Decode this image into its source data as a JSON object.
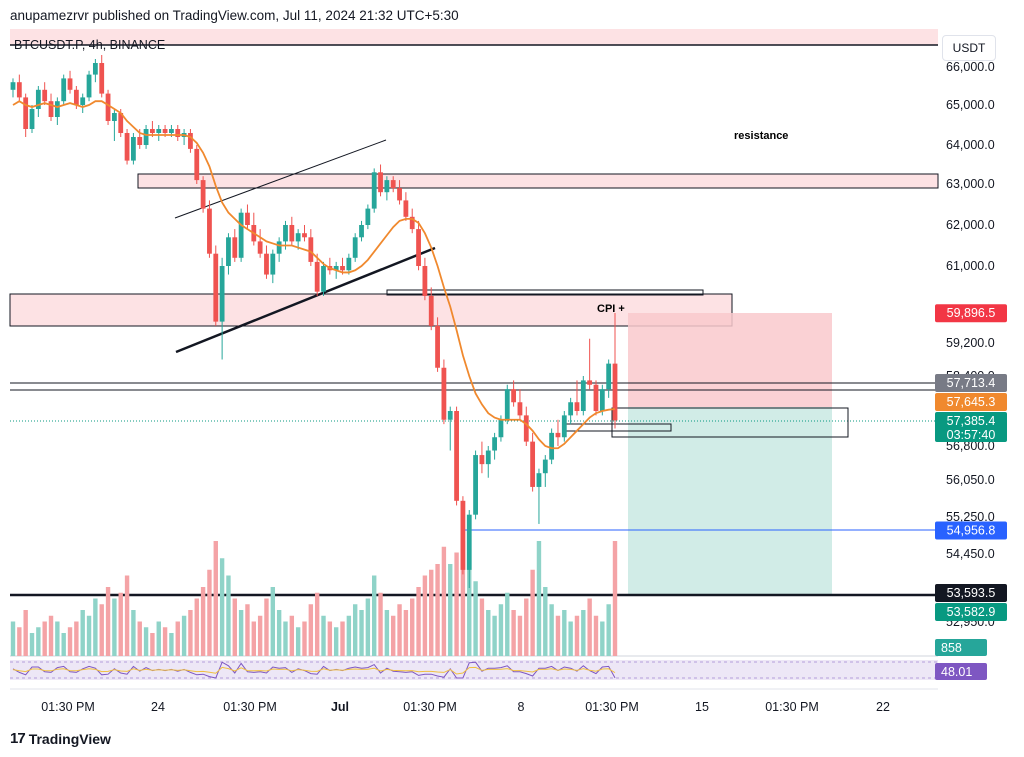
{
  "header": {
    "published": "anupamezrvr published on TradingView.com, Jul 11, 2024 21:32 UTC+5:30"
  },
  "symbol": {
    "label": "BTCUSDT.P, 4h, BINANCE"
  },
  "currency": "USDT",
  "footer": {
    "brand": "TradingView"
  },
  "annotations": {
    "resistance": "resistance",
    "cpi": "CPI +"
  },
  "colors": {
    "up": "#26a69a",
    "down": "#ef5350",
    "ma": "#f0892e",
    "zone_fill": "#fde2e4",
    "zone_stroke": "#333333",
    "stop_zone": "#f9c9cc",
    "target_zone": "#c9e9e3"
  },
  "chart_data": {
    "type": "candlestick",
    "y_axis": {
      "ticks": [
        "66,000.0",
        "65,000.0",
        "64,000.0",
        "63,000.0",
        "62,000.0",
        "61,000.0",
        "59,200.0",
        "58,400.0",
        "56,800.0",
        "56,050.0",
        "55,250.0",
        "54,450.0",
        "52,950.0"
      ],
      "tick_values": [
        66000,
        65000,
        64000,
        63000,
        62000,
        61000,
        59200,
        58400,
        56800,
        56050,
        55250,
        54450,
        52950
      ]
    },
    "x_axis": {
      "ticks": [
        "01:30 PM",
        "24",
        "01:30 PM",
        "Jul",
        "01:30 PM",
        "8",
        "01:30 PM",
        "15",
        "01:30 PM",
        "22"
      ]
    },
    "price_tags": [
      {
        "label": "59,896.5",
        "value": 59896.5,
        "color": "#f23645"
      },
      {
        "label": "57,713.4",
        "value": 57713.4,
        "color": "#787b86"
      },
      {
        "label": "57,645.3",
        "value": 57645.3,
        "color": "#f0892e"
      },
      {
        "label": "57,385.4",
        "value": 57385.4,
        "color": "#089981",
        "sub": "03:57:40"
      },
      {
        "label": "54,956.8",
        "value": 54956.8,
        "color": "#2962ff"
      },
      {
        "label": "53,593.5",
        "value": 53593.5,
        "color": "#131722"
      },
      {
        "label": "53,582.9",
        "value": 53582.9,
        "color": "#089981"
      }
    ],
    "indicator_tags": [
      {
        "label": "858",
        "color": "#26a69a"
      },
      {
        "label": "48.01",
        "color": "#7e57c2"
      }
    ],
    "candles_ohlc": [
      [
        65400,
        65700,
        65200,
        65600
      ],
      [
        65600,
        65800,
        65100,
        65200
      ],
      [
        65200,
        65300,
        64200,
        64400
      ],
      [
        64400,
        65000,
        64300,
        64900
      ],
      [
        64900,
        65500,
        64700,
        65400
      ],
      [
        65400,
        65600,
        65000,
        65100
      ],
      [
        65100,
        65300,
        64600,
        64700
      ],
      [
        64700,
        65200,
        64500,
        65100
      ],
      [
        65100,
        65800,
        65000,
        65700
      ],
      [
        65700,
        65900,
        65300,
        65400
      ],
      [
        65400,
        65500,
        64900,
        65000
      ],
      [
        65000,
        65300,
        64800,
        65200
      ],
      [
        65200,
        65900,
        65100,
        65800
      ],
      [
        65800,
        66200,
        65600,
        66100
      ],
      [
        66100,
        66300,
        65200,
        65300
      ],
      [
        65300,
        65400,
        64500,
        64600
      ],
      [
        64600,
        64900,
        64100,
        64800
      ],
      [
        64800,
        64900,
        64200,
        64300
      ],
      [
        64300,
        64400,
        63500,
        63600
      ],
      [
        63600,
        64300,
        63500,
        64200
      ],
      [
        64200,
        64400,
        63900,
        64000
      ],
      [
        64000,
        64500,
        63900,
        64400
      ],
      [
        64400,
        64600,
        64200,
        64300
      ],
      [
        64300,
        64500,
        64100,
        64400
      ],
      [
        64400,
        64500,
        64200,
        64300
      ],
      [
        64300,
        64500,
        64200,
        64400
      ],
      [
        64400,
        64500,
        64100,
        64200
      ],
      [
        64200,
        64400,
        64000,
        64300
      ],
      [
        64300,
        64400,
        63800,
        63900
      ],
      [
        63900,
        64000,
        63000,
        63100
      ],
      [
        63100,
        63200,
        62300,
        62400
      ],
      [
        62400,
        62600,
        61200,
        61300
      ],
      [
        61300,
        61500,
        59600,
        59700
      ],
      [
        59700,
        61200,
        58800,
        61000
      ],
      [
        61000,
        61800,
        60800,
        61700
      ],
      [
        61700,
        61900,
        61100,
        61200
      ],
      [
        61200,
        62400,
        61100,
        62300
      ],
      [
        62300,
        62500,
        61900,
        62000
      ],
      [
        62000,
        62300,
        61500,
        61600
      ],
      [
        61600,
        61900,
        61200,
        61300
      ],
      [
        61300,
        61500,
        60700,
        60800
      ],
      [
        60800,
        61400,
        60600,
        61300
      ],
      [
        61300,
        61700,
        61100,
        61600
      ],
      [
        61600,
        62100,
        61400,
        62000
      ],
      [
        62000,
        62200,
        61500,
        61600
      ],
      [
        61600,
        61900,
        61400,
        61800
      ],
      [
        61800,
        62000,
        61600,
        61700
      ],
      [
        61700,
        61900,
        61000,
        61100
      ],
      [
        61100,
        61300,
        60300,
        60400
      ],
      [
        60400,
        61100,
        60300,
        61000
      ],
      [
        61000,
        61200,
        60800,
        60900
      ],
      [
        60900,
        61100,
        60700,
        61000
      ],
      [
        61000,
        61200,
        60800,
        60900
      ],
      [
        60900,
        61300,
        60800,
        61200
      ],
      [
        61200,
        61800,
        61100,
        61700
      ],
      [
        61700,
        62100,
        61600,
        62000
      ],
      [
        62000,
        62500,
        61900,
        62400
      ],
      [
        62400,
        63400,
        62300,
        63300
      ],
      [
        63300,
        63500,
        62700,
        62800
      ],
      [
        62800,
        63200,
        62600,
        63100
      ],
      [
        63100,
        63200,
        62800,
        62900
      ],
      [
        62900,
        63100,
        62500,
        62600
      ],
      [
        62600,
        62800,
        62100,
        62200
      ],
      [
        62200,
        62400,
        61800,
        61900
      ],
      [
        61900,
        62100,
        60900,
        61000
      ],
      [
        61000,
        61200,
        60200,
        60300
      ],
      [
        60300,
        60500,
        59500,
        59600
      ],
      [
        59600,
        59800,
        58500,
        58600
      ],
      [
        58600,
        58800,
        57300,
        57400
      ],
      [
        57400,
        57700,
        56700,
        57600
      ],
      [
        57600,
        57700,
        55500,
        55600
      ],
      [
        55600,
        55700,
        54000,
        54100
      ],
      [
        54100,
        55400,
        53700,
        55300
      ],
      [
        55300,
        56700,
        55200,
        56600
      ],
      [
        56600,
        56900,
        56200,
        56400
      ],
      [
        56400,
        56800,
        56100,
        56700
      ],
      [
        56700,
        57100,
        56500,
        57000
      ],
      [
        57000,
        57500,
        56900,
        57400
      ],
      [
        57400,
        58200,
        57300,
        58100
      ],
      [
        58100,
        58300,
        57700,
        57800
      ],
      [
        57800,
        58100,
        57400,
        57500
      ],
      [
        57500,
        57700,
        56800,
        56900
      ],
      [
        56900,
        57100,
        55800,
        55900
      ],
      [
        55900,
        56300,
        55100,
        56200
      ],
      [
        56200,
        56600,
        55900,
        56500
      ],
      [
        56500,
        57200,
        56400,
        57100
      ],
      [
        57100,
        57400,
        56800,
        57000
      ],
      [
        57000,
        57600,
        56900,
        57500
      ],
      [
        57500,
        57900,
        57300,
        57800
      ],
      [
        57800,
        58300,
        57500,
        57600
      ],
      [
        57600,
        58400,
        57500,
        58300
      ],
      [
        58300,
        59300,
        58100,
        58200
      ],
      [
        58200,
        58300,
        57500,
        57600
      ],
      [
        57600,
        58200,
        57500,
        58100
      ],
      [
        58100,
        58800,
        57900,
        58700
      ],
      [
        58700,
        59900,
        57200,
        57385
      ]
    ],
    "volume_rel": [
      0.3,
      0.25,
      0.4,
      0.2,
      0.25,
      0.3,
      0.35,
      0.3,
      0.2,
      0.25,
      0.3,
      0.4,
      0.35,
      0.5,
      0.45,
      0.6,
      0.5,
      0.55,
      0.7,
      0.4,
      0.3,
      0.25,
      0.2,
      0.3,
      0.25,
      0.2,
      0.3,
      0.35,
      0.4,
      0.5,
      0.6,
      0.75,
      1.0,
      0.85,
      0.7,
      0.5,
      0.4,
      0.45,
      0.3,
      0.35,
      0.5,
      0.6,
      0.4,
      0.3,
      0.35,
      0.25,
      0.3,
      0.45,
      0.55,
      0.35,
      0.3,
      0.25,
      0.3,
      0.35,
      0.45,
      0.4,
      0.5,
      0.7,
      0.55,
      0.4,
      0.35,
      0.45,
      0.4,
      0.5,
      0.6,
      0.7,
      0.75,
      0.8,
      0.95,
      0.8,
      0.9,
      1.0,
      0.85,
      0.65,
      0.5,
      0.4,
      0.35,
      0.45,
      0.55,
      0.4,
      0.35,
      0.5,
      0.75,
      1.0,
      0.6,
      0.45,
      0.35,
      0.4,
      0.3,
      0.35,
      0.4,
      0.5,
      0.35,
      0.3,
      0.45,
      1.0
    ],
    "ma_curve": [
      65000,
      65100,
      65000,
      64950,
      65000,
      65050,
      65000,
      64950,
      65000,
      65050,
      65000,
      64950,
      65000,
      65100,
      65100,
      65000,
      64900,
      64800,
      64600,
      64450,
      64300,
      64250,
      64250,
      64250,
      64250,
      64250,
      64250,
      64250,
      64200,
      64050,
      63800,
      63450,
      62950,
      62550,
      62300,
      62150,
      62000,
      61900,
      61800,
      61700,
      61600,
      61550,
      61500,
      61500,
      61500,
      61450,
      61400,
      61350,
      61200,
      61050,
      60950,
      60900,
      60850,
      60850,
      60900,
      61000,
      61150,
      61350,
      61550,
      61750,
      61950,
      62100,
      62150,
      62150,
      62050,
      61800,
      61450,
      61000,
      60500,
      60050,
      59500,
      58900,
      58400,
      58000,
      57750,
      57550,
      57450,
      57400,
      57400,
      57400,
      57400,
      57300,
      57150,
      56950,
      56800,
      56750,
      56750,
      56850,
      57000,
      57150,
      57300,
      57450,
      57550,
      57600,
      57630,
      57645
    ]
  }
}
